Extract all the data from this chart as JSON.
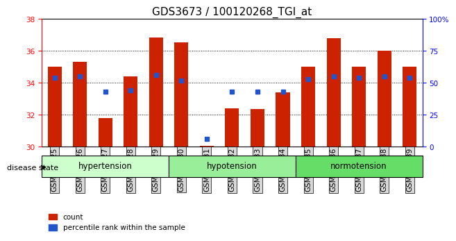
{
  "title": "GDS3673 / 100120268_TGI_at",
  "samples": [
    "GSM493525",
    "GSM493526",
    "GSM493527",
    "GSM493528",
    "GSM493529",
    "GSM493530",
    "GSM493531",
    "GSM493532",
    "GSM493533",
    "GSM493534",
    "GSM493535",
    "GSM493536",
    "GSM493537",
    "GSM493538",
    "GSM493539"
  ],
  "counts": [
    35.0,
    35.3,
    31.8,
    34.4,
    36.85,
    36.55,
    30.05,
    32.4,
    32.35,
    33.4,
    35.0,
    36.8,
    35.0,
    36.0,
    35.0
  ],
  "percentile_ranks": [
    54,
    55,
    43,
    44,
    56,
    52,
    6,
    43,
    43,
    43,
    53,
    55,
    54,
    55,
    54
  ],
  "ymin": 30,
  "ymax": 38,
  "yticks": [
    30,
    32,
    34,
    36,
    38
  ],
  "y2min": 0,
  "y2max": 100,
  "y2ticks": [
    0,
    25,
    50,
    75,
    100
  ],
  "bar_color": "#cc2200",
  "marker_color": "#2255cc",
  "groups": [
    {
      "label": "hypertension",
      "start": 0,
      "end": 4
    },
    {
      "label": "hypotension",
      "start": 5,
      "end": 9
    },
    {
      "label": "normotension",
      "start": 10,
      "end": 14
    }
  ],
  "group_bg_colors": [
    "#ccffcc",
    "#99ff99",
    "#66ee66"
  ],
  "xlabel_disease": "disease state",
  "legend_count": "count",
  "legend_percentile": "percentile rank within the sample",
  "title_fontsize": 11,
  "axis_fontsize": 8,
  "tick_fontsize": 7.5
}
